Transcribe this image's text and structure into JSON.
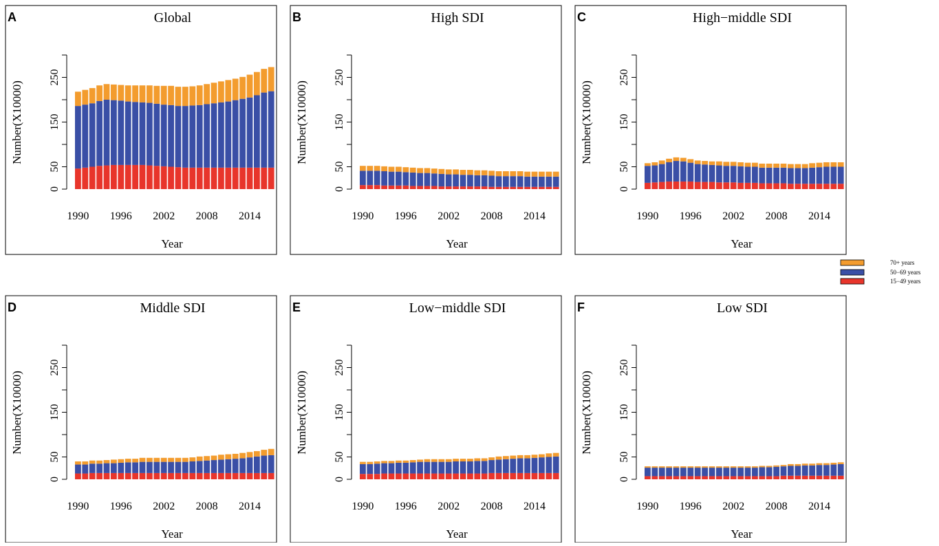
{
  "figure": {
    "legend": [
      {
        "label": "70+ years",
        "color": "#F39C2E"
      },
      {
        "label": "50−69 years",
        "color": "#3A4FA6"
      },
      {
        "label": "15−49 years",
        "color": "#E8352B"
      }
    ]
  },
  "chart_data": [
    {
      "panel": "A",
      "title": "Global",
      "type": "bar",
      "stacked": true,
      "xlabel": "Year",
      "ylabel": "Number(X10000)",
      "yticks": [
        "0",
        "50",
        "150",
        "250"
      ],
      "ylim": [
        0,
        300
      ],
      "xticks": [
        "1990",
        "1996",
        "2002",
        "2008",
        "2014"
      ],
      "x": [
        1990,
        1991,
        1992,
        1993,
        1994,
        1995,
        1996,
        1997,
        1998,
        1999,
        2000,
        2001,
        2002,
        2003,
        2004,
        2005,
        2006,
        2007,
        2008,
        2009,
        2010,
        2011,
        2012,
        2013,
        2014,
        2015,
        2016,
        2017
      ],
      "series": [
        {
          "name": "15−49 years",
          "color": "#E8352B",
          "values": [
            46,
            48,
            50,
            52,
            53,
            54,
            54,
            54,
            54,
            54,
            53,
            52,
            51,
            50,
            49,
            48,
            48,
            48,
            48,
            48,
            48,
            48,
            48,
            48,
            48,
            48,
            48,
            48
          ]
        },
        {
          "name": "50−69 years",
          "color": "#3A4FA6",
          "values": [
            140,
            141,
            142,
            145,
            147,
            145,
            144,
            142,
            141,
            140,
            140,
            139,
            138,
            138,
            137,
            138,
            139,
            140,
            142,
            144,
            146,
            148,
            151,
            154,
            157,
            162,
            168,
            171
          ]
        },
        {
          "name": "70+ years",
          "color": "#F39C2E",
          "values": [
            32,
            33,
            34,
            35,
            35,
            35,
            35,
            36,
            37,
            38,
            39,
            40,
            42,
            43,
            43,
            43,
            43,
            44,
            45,
            46,
            47,
            48,
            48,
            49,
            51,
            52,
            53,
            54
          ]
        }
      ]
    },
    {
      "panel": "B",
      "title": "High SDI",
      "type": "bar",
      "stacked": true,
      "xlabel": "Year",
      "ylabel": "Number(X10000)",
      "yticks": [
        "0",
        "50",
        "150",
        "250"
      ],
      "ylim": [
        0,
        300
      ],
      "xticks": [
        "1990",
        "1996",
        "2002",
        "2008",
        "2014"
      ],
      "x": [
        1990,
        1991,
        1992,
        1993,
        1994,
        1995,
        1996,
        1997,
        1998,
        1999,
        2000,
        2001,
        2002,
        2003,
        2004,
        2005,
        2006,
        2007,
        2008,
        2009,
        2010,
        2011,
        2012,
        2013,
        2014,
        2015,
        2016,
        2017
      ],
      "series": [
        {
          "name": "15−49 years",
          "color": "#E8352B",
          "values": [
            9,
            9,
            9,
            8,
            8,
            8,
            8,
            7,
            7,
            7,
            7,
            6,
            6,
            6,
            6,
            6,
            6,
            6,
            5,
            5,
            5,
            5,
            5,
            5,
            5,
            5,
            5,
            5
          ]
        },
        {
          "name": "50−69 years",
          "color": "#3A4FA6",
          "values": [
            32,
            32,
            32,
            32,
            31,
            31,
            30,
            30,
            29,
            29,
            28,
            28,
            27,
            27,
            26,
            26,
            25,
            25,
            25,
            24,
            24,
            24,
            24,
            23,
            23,
            23,
            23,
            23
          ]
        },
        {
          "name": "70+ years",
          "color": "#F39C2E",
          "values": [
            11,
            11,
            11,
            11,
            11,
            11,
            11,
            11,
            11,
            11,
            11,
            11,
            11,
            11,
            11,
            11,
            11,
            11,
            11,
            11,
            11,
            11,
            11,
            11,
            11,
            11,
            11,
            11
          ]
        }
      ]
    },
    {
      "panel": "C",
      "title": "High−middle SDI",
      "type": "bar",
      "stacked": true,
      "xlabel": "Year",
      "ylabel": "Number(X10000)",
      "yticks": [
        "0",
        "50",
        "150",
        "250"
      ],
      "ylim": [
        0,
        300
      ],
      "xticks": [
        "1990",
        "1996",
        "2002",
        "2008",
        "2014"
      ],
      "x": [
        1990,
        1991,
        1992,
        1993,
        1994,
        1995,
        1996,
        1997,
        1998,
        1999,
        2000,
        2001,
        2002,
        2003,
        2004,
        2005,
        2006,
        2007,
        2008,
        2009,
        2010,
        2011,
        2012,
        2013,
        2014,
        2015,
        2016,
        2017
      ],
      "series": [
        {
          "name": "15−49 years",
          "color": "#E8352B",
          "values": [
            14,
            15,
            16,
            17,
            17,
            17,
            17,
            16,
            16,
            16,
            15,
            15,
            15,
            14,
            14,
            14,
            13,
            13,
            13,
            13,
            12,
            12,
            12,
            12,
            12,
            12,
            12,
            12
          ]
        },
        {
          "name": "50−69 years",
          "color": "#3A4FA6",
          "values": [
            38,
            38,
            40,
            43,
            46,
            45,
            42,
            40,
            39,
            38,
            38,
            37,
            37,
            37,
            36,
            36,
            35,
            35,
            35,
            35,
            35,
            35,
            35,
            36,
            37,
            38,
            38,
            38
          ]
        },
        {
          "name": "70+ years",
          "color": "#F39C2E",
          "values": [
            6,
            7,
            8,
            8,
            8,
            8,
            8,
            8,
            8,
            8,
            9,
            9,
            9,
            9,
            9,
            9,
            9,
            9,
            9,
            9,
            9,
            9,
            9,
            10,
            10,
            10,
            10,
            10
          ]
        }
      ]
    },
    {
      "panel": "D",
      "title": "Middle SDI",
      "type": "bar",
      "stacked": true,
      "xlabel": "Year",
      "ylabel": "Number(X10000)",
      "yticks": [
        "0",
        "50",
        "150",
        "250"
      ],
      "ylim": [
        0,
        300
      ],
      "xticks": [
        "1990",
        "1996",
        "2002",
        "2008",
        "2014"
      ],
      "x": [
        1990,
        1991,
        1992,
        1993,
        1994,
        1995,
        1996,
        1997,
        1998,
        1999,
        2000,
        2001,
        2002,
        2003,
        2004,
        2005,
        2006,
        2007,
        2008,
        2009,
        2010,
        2011,
        2012,
        2013,
        2014,
        2015,
        2016,
        2017
      ],
      "series": [
        {
          "name": "15−49 years",
          "color": "#E8352B",
          "values": [
            13,
            13,
            14,
            14,
            14,
            14,
            14,
            14,
            14,
            14,
            14,
            14,
            14,
            14,
            14,
            14,
            14,
            14,
            14,
            14,
            14,
            14,
            14,
            14,
            14,
            14,
            14,
            14
          ]
        },
        {
          "name": "50−69 years",
          "color": "#3A4FA6",
          "values": [
            20,
            20,
            21,
            21,
            22,
            22,
            23,
            24,
            24,
            25,
            25,
            25,
            25,
            25,
            25,
            25,
            26,
            27,
            28,
            29,
            30,
            31,
            32,
            33,
            35,
            37,
            39,
            40
          ]
        },
        {
          "name": "70+ years",
          "color": "#F39C2E",
          "values": [
            7,
            7,
            7,
            7,
            7,
            8,
            8,
            8,
            8,
            9,
            9,
            9,
            9,
            9,
            9,
            9,
            9,
            10,
            10,
            10,
            11,
            11,
            11,
            12,
            12,
            12,
            13,
            14
          ]
        }
      ]
    },
    {
      "panel": "E",
      "title": "Low−middle SDI",
      "type": "bar",
      "stacked": true,
      "xlabel": "Year",
      "ylabel": "Number(X10000)",
      "yticks": [
        "0",
        "50",
        "150",
        "250"
      ],
      "ylim": [
        0,
        300
      ],
      "xticks": [
        "1990",
        "1996",
        "2002",
        "2008",
        "2014"
      ],
      "x": [
        1990,
        1991,
        1992,
        1993,
        1994,
        1995,
        1996,
        1997,
        1998,
        1999,
        2000,
        2001,
        2002,
        2003,
        2004,
        2005,
        2006,
        2007,
        2008,
        2009,
        2010,
        2011,
        2012,
        2013,
        2014,
        2015,
        2016,
        2017
      ],
      "series": [
        {
          "name": "15−49 years",
          "color": "#E8352B",
          "values": [
            12,
            12,
            12,
            13,
            13,
            13,
            13,
            13,
            13,
            13,
            13,
            13,
            13,
            13,
            13,
            13,
            13,
            13,
            14,
            14,
            14,
            14,
            14,
            14,
            14,
            14,
            14,
            14
          ]
        },
        {
          "name": "50−69 years",
          "color": "#3A4FA6",
          "values": [
            22,
            22,
            23,
            23,
            23,
            24,
            24,
            25,
            26,
            26,
            26,
            26,
            26,
            27,
            27,
            27,
            28,
            28,
            29,
            30,
            31,
            32,
            33,
            33,
            34,
            35,
            36,
            37
          ]
        },
        {
          "name": "70+ years",
          "color": "#F39C2E",
          "values": [
            5,
            5,
            5,
            5,
            5,
            5,
            5,
            5,
            5,
            6,
            6,
            6,
            6,
            6,
            6,
            6,
            6,
            6,
            6,
            7,
            7,
            7,
            7,
            7,
            7,
            7,
            8,
            8
          ]
        }
      ]
    },
    {
      "panel": "F",
      "title": "Low SDI",
      "type": "bar",
      "stacked": true,
      "xlabel": "Year",
      "ylabel": "Number(X10000)",
      "yticks": [
        "0",
        "50",
        "150",
        "250"
      ],
      "ylim": [
        0,
        300
      ],
      "xticks": [
        "1990",
        "1996",
        "2002",
        "2008",
        "2014"
      ],
      "x": [
        1990,
        1991,
        1992,
        1993,
        1994,
        1995,
        1996,
        1997,
        1998,
        1999,
        2000,
        2001,
        2002,
        2003,
        2004,
        2005,
        2006,
        2007,
        2008,
        2009,
        2010,
        2011,
        2012,
        2013,
        2014,
        2015,
        2016,
        2017
      ],
      "series": [
        {
          "name": "15−49 years",
          "color": "#E8352B",
          "values": [
            7,
            7,
            7,
            7,
            7,
            7,
            7,
            7,
            7,
            7,
            7,
            7,
            7,
            7,
            7,
            7,
            7,
            7,
            7,
            8,
            8,
            8,
            8,
            8,
            8,
            8,
            8,
            8
          ]
        },
        {
          "name": "50−69 years",
          "color": "#3A4FA6",
          "values": [
            19,
            19,
            19,
            19,
            19,
            19,
            19,
            19,
            19,
            19,
            19,
            19,
            19,
            19,
            19,
            19,
            20,
            20,
            21,
            21,
            22,
            22,
            23,
            23,
            24,
            24,
            25,
            26
          ]
        },
        {
          "name": "70+ years",
          "color": "#F39C2E",
          "values": [
            3,
            3,
            3,
            3,
            3,
            3,
            3,
            3,
            3,
            3,
            3,
            3,
            3,
            3,
            3,
            3,
            3,
            3,
            3,
            3,
            4,
            4,
            4,
            4,
            4,
            4,
            4,
            4
          ]
        }
      ]
    }
  ]
}
